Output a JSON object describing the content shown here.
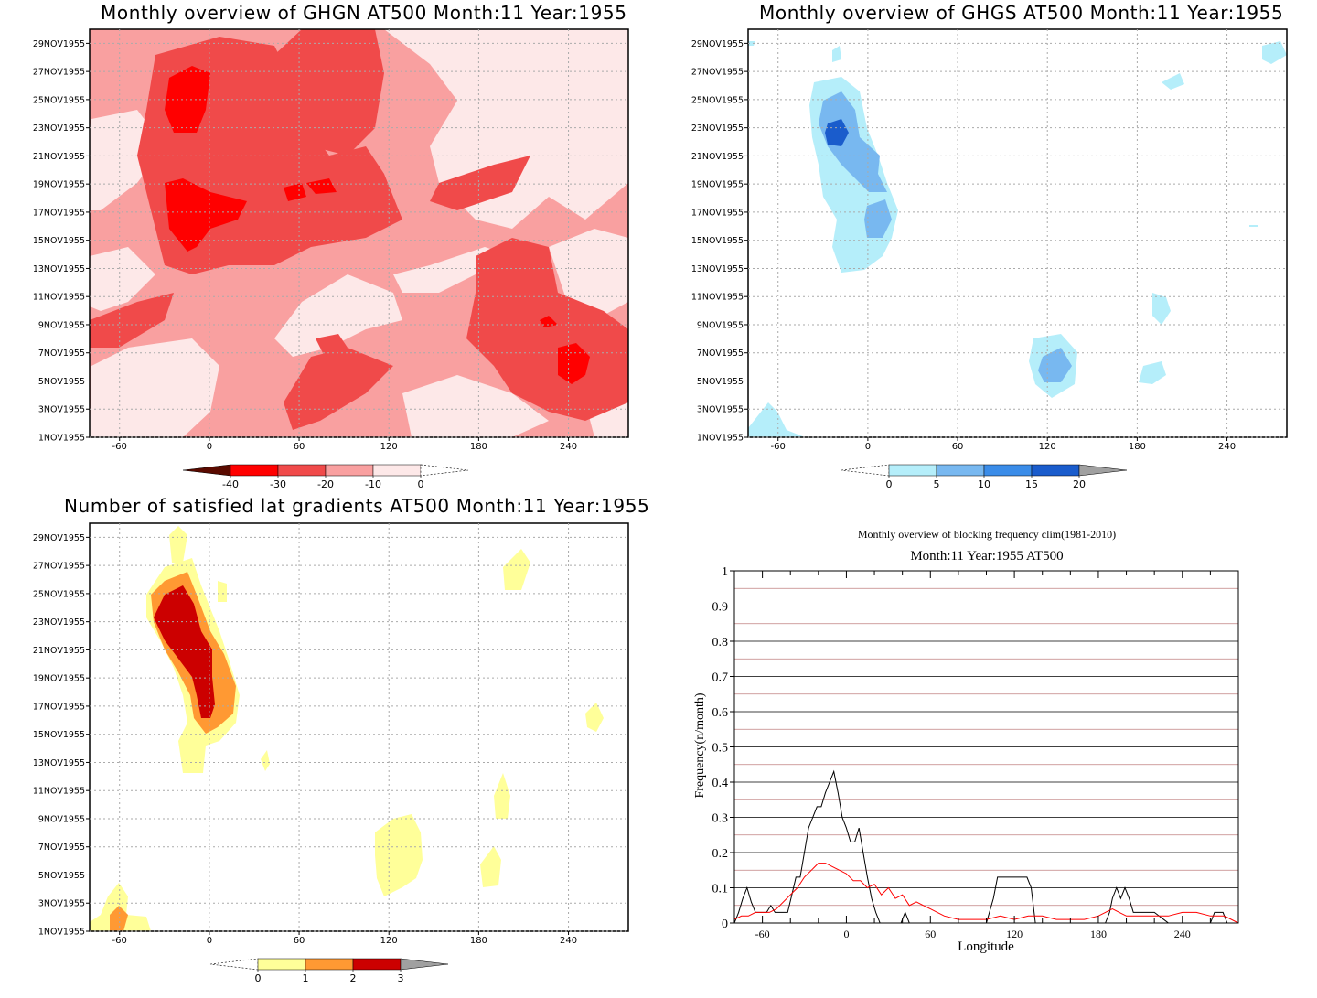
{
  "panels": {
    "ghgn": {
      "title": "Monthly overview of GHGN AT500 Month:11 Year:1955",
      "colorbar": {
        "labels": [
          "-40",
          "-30",
          "-20",
          "-10",
          "0"
        ],
        "colors": [
          "#5a0a00",
          "#ff0000",
          "#f04a4a",
          "#f9a0a0",
          "#fde8e8"
        ]
      }
    },
    "ghgs": {
      "title": "Monthly overview of GHGS AT500 Month:11 Year:1955",
      "colorbar": {
        "labels": [
          "0",
          "5",
          "10",
          "15",
          "20"
        ],
        "colors": [
          "#b5eefa",
          "#78b8f0",
          "#3a8ce8",
          "#1a5ccc",
          "#a0a0a0"
        ]
      }
    },
    "lat": {
      "title": "Number of satisfied lat gradients AT500 Month:11 Year:1955",
      "colorbar": {
        "labels": [
          "0",
          "1",
          "2",
          "3"
        ],
        "colors": [
          "#ffff99",
          "#ff9933",
          "#cc0000",
          "#a0a0a0"
        ]
      }
    },
    "freq": {
      "title": "Monthly overview of blocking frequency clim(1981-2010)",
      "subtitle": "Month:11 Year:1955  AT500"
    }
  },
  "map_axes": {
    "date_ticks": [
      "1NOV1955",
      "3NOV1955",
      "5NOV1955",
      "7NOV1955",
      "9NOV1955",
      "11NOV1955",
      "13NOV1955",
      "15NOV1955",
      "17NOV1955",
      "19NOV1955",
      "21NOV1955",
      "23NOV1955",
      "25NOV1955",
      "27NOV1955",
      "29NOV1955"
    ],
    "lon_ticks": [
      "-60",
      "0",
      "60",
      "120",
      "180",
      "240"
    ],
    "lon_range": [
      -80,
      280
    ]
  },
  "chart_data": {
    "type": "line",
    "title": "Monthly overview of blocking frequency clim(1981-2010)",
    "subtitle": "Month:11 Year:1955  AT500",
    "xlabel": "Longitude",
    "ylabel": "Frequency(n/month)",
    "xlim": [
      -80,
      280
    ],
    "ylim": [
      0,
      1
    ],
    "x_ticks": [
      "-60",
      "0",
      "60",
      "120",
      "180",
      "240"
    ],
    "y_ticks": [
      "0",
      "0.1",
      "0.2",
      "0.3",
      "0.4",
      "0.5",
      "0.6",
      "0.7",
      "0.8",
      "0.9",
      "1"
    ],
    "grid": true,
    "series": [
      {
        "color": "#000000",
        "x": [
          -80,
          -77,
          -74,
          -71,
          -68,
          -65,
          -62,
          -60,
          -57,
          -54,
          -51,
          -48,
          -45,
          -42,
          -39,
          -36,
          -33,
          -30,
          -27,
          -24,
          -21,
          -18,
          -15,
          -12,
          -9,
          -6,
          -3,
          0,
          3,
          6,
          9,
          12,
          15,
          18,
          21,
          24,
          27,
          30,
          33,
          36,
          39,
          42,
          45,
          48,
          60,
          80,
          100,
          105,
          108,
          111,
          114,
          120,
          126,
          129,
          132,
          135,
          138,
          141,
          150,
          170,
          180,
          185,
          188,
          190,
          193,
          196,
          199,
          202,
          205,
          210,
          215,
          220,
          230,
          240,
          250,
          260,
          263,
          266,
          269,
          272,
          276,
          280
        ],
        "y": [
          0,
          0.03,
          0.07,
          0.1,
          0.06,
          0.03,
          0.03,
          0.03,
          0.03,
          0.05,
          0.03,
          0.03,
          0.03,
          0.03,
          0.08,
          0.13,
          0.13,
          0.2,
          0.27,
          0.3,
          0.33,
          0.33,
          0.37,
          0.4,
          0.43,
          0.37,
          0.3,
          0.27,
          0.23,
          0.23,
          0.27,
          0.2,
          0.13,
          0.07,
          0.03,
          0,
          0,
          0,
          0,
          0,
          0,
          0.03,
          0,
          0,
          0,
          0,
          0,
          0.07,
          0.13,
          0.13,
          0.13,
          0.13,
          0.13,
          0.13,
          0.1,
          0,
          0,
          0,
          0,
          0,
          0,
          0,
          0.03,
          0.07,
          0.1,
          0.07,
          0.1,
          0.07,
          0.03,
          0.03,
          0.03,
          0.03,
          0,
          0,
          0,
          0,
          0.03,
          0.03,
          0.03,
          0,
          0,
          0
        ]
      },
      {
        "color": "#ff0000",
        "x": [
          -80,
          -75,
          -70,
          -65,
          -60,
          -55,
          -50,
          -45,
          -40,
          -35,
          -30,
          -25,
          -20,
          -15,
          -10,
          -5,
          0,
          5,
          10,
          15,
          20,
          25,
          30,
          35,
          40,
          45,
          50,
          55,
          60,
          65,
          70,
          80,
          90,
          100,
          110,
          120,
          130,
          140,
          150,
          160,
          170,
          180,
          185,
          190,
          195,
          200,
          210,
          220,
          230,
          240,
          250,
          260,
          270,
          280
        ],
        "y": [
          0.01,
          0.02,
          0.02,
          0.03,
          0.03,
          0.03,
          0.04,
          0.06,
          0.08,
          0.1,
          0.13,
          0.15,
          0.17,
          0.17,
          0.16,
          0.15,
          0.14,
          0.12,
          0.12,
          0.1,
          0.11,
          0.08,
          0.1,
          0.07,
          0.08,
          0.05,
          0.06,
          0.05,
          0.04,
          0.03,
          0.02,
          0.01,
          0.01,
          0.01,
          0.02,
          0.01,
          0.02,
          0.02,
          0.01,
          0.01,
          0.01,
          0.02,
          0.03,
          0.04,
          0.03,
          0.02,
          0.02,
          0.02,
          0.02,
          0.03,
          0.03,
          0.02,
          0.02,
          0.0
        ]
      }
    ]
  }
}
